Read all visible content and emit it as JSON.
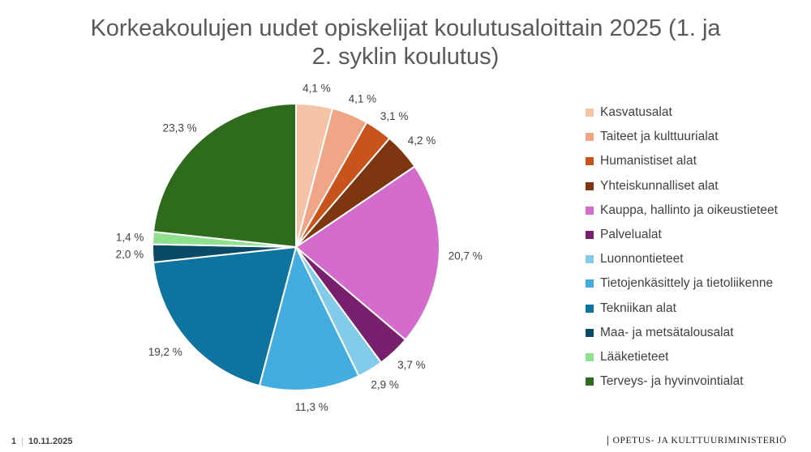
{
  "chart_data": {
    "type": "pie",
    "title": "Korkeakoulujen uudet opiskelijat koulutusaloittain 2025 (1. ja 2. syklin koulutus)",
    "legend_position": "right",
    "start_angle_deg": 0,
    "direction": "clockwise",
    "slices": [
      {
        "label": "Kasvatusalat",
        "value": 4.1,
        "display": "4,1 %",
        "color": "#f4c3a8"
      },
      {
        "label": "Taiteet ja kulttuurialat",
        "value": 4.1,
        "display": "4,1 %",
        "color": "#ef a586"
      },
      {
        "label": "Humanistiset alat",
        "value": 3.1,
        "display": "3,1 %",
        "color": "#c8541b"
      },
      {
        "label": "Yhteiskunnalliset alat",
        "value": 4.2,
        "display": "4,2 %",
        "color": "#7e3611"
      },
      {
        "label": "Kauppa, hallinto ja oikeustieteet",
        "value": 20.7,
        "display": "20,7 %",
        "color": "#d36ccc"
      },
      {
        "label": "Palvelualat",
        "value": 3.7,
        "display": "3,7 %",
        "color": "#78206e"
      },
      {
        "label": "Luonnontieteet",
        "value": 2.9,
        "display": "2,9 %",
        "color": "#82cbea"
      },
      {
        "label": "Tietojenkäsittely ja tietoliikenne",
        "value": 11.3,
        "display": "11,3 %",
        "color": "#44ade0"
      },
      {
        "label": "Tekniikan alat",
        "value": 19.2,
        "display": "19,2 %",
        "color": "#0f739f"
      },
      {
        "label": "Maa- ja metsätalousalat",
        "value": 2.0,
        "display": "2,0 %",
        "color": "#0b4a66"
      },
      {
        "label": "Lääketieteet",
        "value": 1.4,
        "display": "1,4 %",
        "color": "#8fe08f"
      },
      {
        "label": "Terveys- ja hyvinvointialat",
        "value": 23.3,
        "display": "23,3 %",
        "color": "#2e6b1d"
      }
    ]
  },
  "footer": {
    "page_number": "1",
    "date": "10.11.2025",
    "organization": "OPETUS- JA KULTTUURIMINISTERIÖ"
  }
}
